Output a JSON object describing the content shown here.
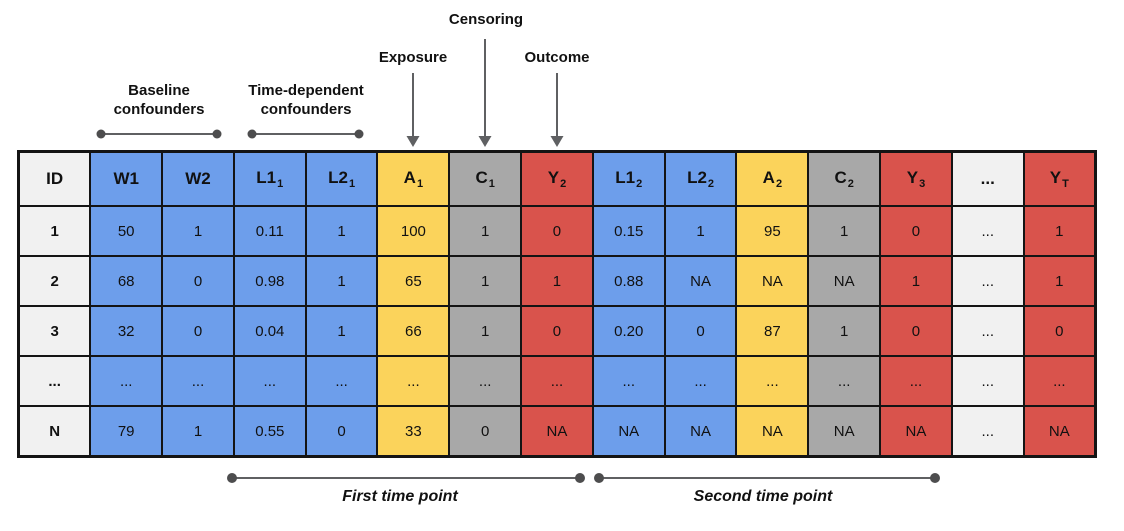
{
  "annotations": {
    "baseline_confounders": "Baseline confounders",
    "time_dependent_confounders": "Time-dependent confounders",
    "exposure": "Exposure",
    "censoring": "Censoring",
    "outcome": "Outcome",
    "first_time_point": "First time point",
    "second_time_point": "Second time point"
  },
  "colors": {
    "blue": "#6D9EEB",
    "yellow": "#FBD35B",
    "gray": "#A8A8A8",
    "red": "#D9534C",
    "light": "#F1F1F1",
    "border": "#141414",
    "annotation_line": "#5F6062",
    "annotation_dot": "#4D4D4E"
  },
  "table": {
    "columns": [
      {
        "label": "ID",
        "sub": "",
        "role": "id"
      },
      {
        "label": "W1",
        "sub": "",
        "role": "blue"
      },
      {
        "label": "W2",
        "sub": "",
        "role": "blue"
      },
      {
        "label": "L1",
        "sub": "1",
        "role": "blue"
      },
      {
        "label": "L2",
        "sub": "1",
        "role": "blue"
      },
      {
        "label": "A",
        "sub": "1",
        "role": "yellow"
      },
      {
        "label": "C",
        "sub": "1",
        "role": "gray"
      },
      {
        "label": "Y",
        "sub": "2",
        "role": "red"
      },
      {
        "label": "L1",
        "sub": "2",
        "role": "blue"
      },
      {
        "label": "L2",
        "sub": "2",
        "role": "blue"
      },
      {
        "label": "A",
        "sub": "2",
        "role": "yellow"
      },
      {
        "label": "C",
        "sub": "2",
        "role": "gray"
      },
      {
        "label": "Y",
        "sub": "3",
        "role": "red"
      },
      {
        "label": "...",
        "sub": "",
        "role": "id"
      },
      {
        "label": "Y",
        "sub": "T",
        "role": "red"
      }
    ],
    "rows": [
      [
        "1",
        "50",
        "1",
        "0.11",
        "1",
        "100",
        "1",
        "0",
        "0.15",
        "1",
        "95",
        "1",
        "0",
        "...",
        "1"
      ],
      [
        "2",
        "68",
        "0",
        "0.98",
        "1",
        "65",
        "1",
        "1",
        "0.88",
        "NA",
        "NA",
        "NA",
        "1",
        "...",
        "1"
      ],
      [
        "3",
        "32",
        "0",
        "0.04",
        "1",
        "66",
        "1",
        "0",
        "0.20",
        "0",
        "87",
        "1",
        "0",
        "...",
        "0"
      ],
      [
        "...",
        "...",
        "...",
        "...",
        "...",
        "...",
        "...",
        "...",
        "...",
        "...",
        "...",
        "...",
        "...",
        "...",
        "..."
      ],
      [
        "N",
        "79",
        "1",
        "0.55",
        "0",
        "33",
        "0",
        "NA",
        "NA",
        "NA",
        "NA",
        "NA",
        "NA",
        "...",
        "NA"
      ]
    ]
  }
}
